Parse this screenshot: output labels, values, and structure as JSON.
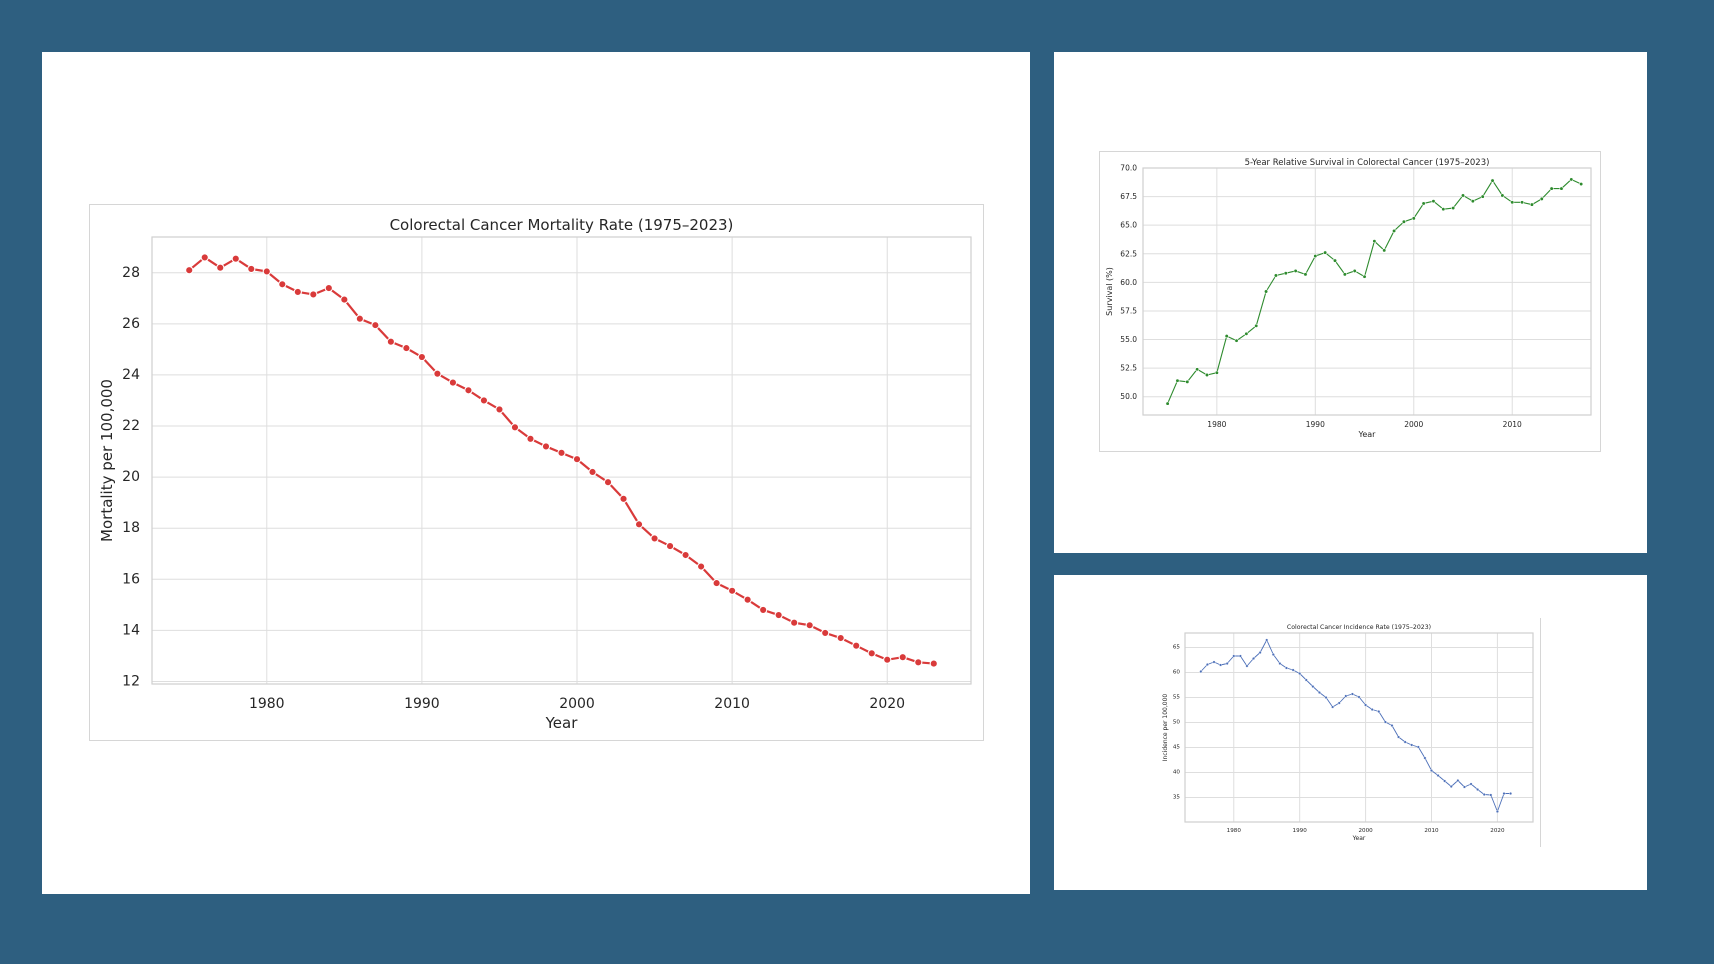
{
  "page": {
    "background": "#2e5f80",
    "panel_background": "#ffffff"
  },
  "chart_data": [
    {
      "id": "mortality",
      "type": "line",
      "title": "Colorectal Cancer Mortality Rate (1975–2023)",
      "xlabel": "Year",
      "ylabel": "Mortality per 100,000",
      "xlim": [
        1972.6,
        2025.4
      ],
      "ylim": [
        11.9,
        29.4
      ],
      "xticks": [
        1980,
        1990,
        2000,
        2010,
        2020
      ],
      "yticks": [
        12,
        14,
        16,
        18,
        20,
        22,
        24,
        26,
        28
      ],
      "grid": true,
      "color": "#d93a3a",
      "series": [
        {
          "x": [
            1975,
            1976,
            1977,
            1978,
            1979,
            1980,
            1981,
            1982,
            1983,
            1984,
            1985,
            1986,
            1987,
            1988,
            1989,
            1990,
            1991,
            1992,
            1993,
            1994,
            1995,
            1996,
            1997,
            1998,
            1999,
            2000,
            2001,
            2002,
            2003,
            2004,
            2005,
            2006,
            2007,
            2008,
            2009,
            2010,
            2011,
            2012,
            2013,
            2014,
            2015,
            2016,
            2017,
            2018,
            2019,
            2020,
            2021,
            2022,
            2023
          ],
          "y": [
            28.1,
            28.6,
            28.2,
            28.55,
            28.15,
            28.05,
            27.55,
            27.25,
            27.15,
            27.4,
            26.95,
            26.2,
            25.95,
            25.3,
            25.05,
            24.7,
            24.05,
            23.7,
            23.4,
            23.0,
            22.65,
            21.95,
            21.5,
            21.2,
            20.95,
            20.7,
            20.2,
            19.8,
            19.15,
            18.15,
            17.6,
            17.3,
            16.95,
            16.5,
            15.85,
            15.55,
            15.2,
            14.8,
            14.6,
            14.3,
            14.2,
            13.9,
            13.7,
            13.4,
            13.1,
            12.85,
            12.95,
            12.75,
            12.7
          ]
        }
      ]
    },
    {
      "id": "survival",
      "type": "line",
      "title": "5-Year Relative Survival in Colorectal Cancer (1975–2023)",
      "xlabel": "Year",
      "ylabel": "Survival (%)",
      "xlim": [
        1972.5,
        2018.0
      ],
      "ylim": [
        48.4,
        70.0
      ],
      "xticks": [
        1980,
        1990,
        2000,
        2010
      ],
      "yticks": [
        "50.0",
        "52.5",
        "55.0",
        "57.5",
        "60.0",
        "62.5",
        "65.0",
        "67.5",
        "70.0"
      ],
      "grid": true,
      "color": "#2e8b2e",
      "series": [
        {
          "x": [
            1975,
            1976,
            1977,
            1978,
            1979,
            1980,
            1981,
            1982,
            1983,
            1984,
            1985,
            1986,
            1987,
            1988,
            1989,
            1990,
            1991,
            1992,
            1993,
            1994,
            1995,
            1996,
            1997,
            1998,
            1999,
            2000,
            2001,
            2002,
            2003,
            2004,
            2005,
            2006,
            2007,
            2008,
            2009,
            2010,
            2011,
            2012,
            2013,
            2014,
            2015,
            2016,
            2017
          ],
          "y": [
            49.4,
            51.4,
            51.3,
            52.4,
            51.9,
            52.1,
            55.3,
            54.9,
            55.5,
            56.2,
            59.2,
            60.6,
            60.8,
            61.0,
            60.7,
            62.3,
            62.6,
            61.9,
            60.7,
            61.0,
            60.5,
            63.6,
            62.8,
            64.5,
            65.3,
            65.6,
            66.9,
            67.1,
            66.4,
            66.5,
            67.6,
            67.1,
            67.5,
            68.9,
            67.6,
            67.0,
            67.0,
            66.8,
            67.3,
            68.2,
            68.2,
            69.0,
            68.6
          ]
        }
      ]
    },
    {
      "id": "incidence",
      "type": "line",
      "title": "Colorectal Cancer Incidence Rate (1975–2023)",
      "xlabel": "Year",
      "ylabel": "Incidence per 100,000",
      "xlim": [
        1972.6,
        2025.4
      ],
      "ylim": [
        30.1,
        67.9
      ],
      "xticks": [
        1980,
        1990,
        2000,
        2010,
        2020
      ],
      "yticks": [
        35,
        40,
        45,
        50,
        55,
        60,
        65
      ],
      "grid": true,
      "color": "#4c6fb8",
      "series": [
        {
          "x": [
            1975,
            1976,
            1977,
            1978,
            1979,
            1980,
            1981,
            1982,
            1983,
            1984,
            1985,
            1986,
            1987,
            1988,
            1989,
            1990,
            1991,
            1992,
            1993,
            1994,
            1995,
            1996,
            1997,
            1998,
            1999,
            2000,
            2001,
            2002,
            2003,
            2004,
            2005,
            2006,
            2007,
            2008,
            2009,
            2010,
            2011,
            2012,
            2013,
            2014,
            2015,
            2016,
            2017,
            2018,
            2019,
            2020,
            2021,
            2022
          ],
          "y": [
            60.2,
            61.6,
            62.1,
            61.5,
            61.8,
            63.3,
            63.3,
            61.3,
            62.8,
            64.0,
            66.5,
            63.6,
            61.8,
            60.9,
            60.5,
            59.8,
            58.5,
            57.2,
            56.0,
            55.0,
            53.1,
            53.9,
            55.3,
            55.7,
            55.1,
            53.5,
            52.6,
            52.2,
            50.1,
            49.4,
            47.1,
            46.1,
            45.5,
            45.1,
            42.9,
            40.4,
            39.4,
            38.3,
            37.2,
            38.4,
            37.1,
            37.7,
            36.6,
            35.6,
            35.5,
            32.2,
            35.8,
            35.8
          ]
        }
      ]
    }
  ]
}
